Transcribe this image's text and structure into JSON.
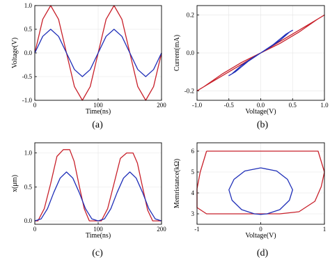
{
  "colors": {
    "red": "#c8202a",
    "blue": "#1f2fb8"
  },
  "chart_data": [
    {
      "type": "line",
      "caption": "(a)",
      "xlabel": "Time(ns)",
      "ylabel": "Voltage(V)",
      "xlim": [
        0,
        200
      ],
      "ylim": [
        -1.0,
        1.0
      ],
      "xticks": [
        "0",
        "100",
        "200"
      ],
      "yticks": [
        "1.0",
        "0.5",
        "0.0",
        "-0.5",
        "-1.0"
      ],
      "grid": true,
      "series": [
        {
          "color": "red",
          "x": [
            0,
            12.5,
            25,
            37.5,
            50,
            62.5,
            75,
            87.5,
            100,
            112.5,
            125,
            137.5,
            150,
            162.5,
            175,
            187.5,
            200
          ],
          "values": [
            0,
            0.71,
            1.0,
            0.71,
            0,
            -0.71,
            -1.0,
            -0.71,
            0,
            0.71,
            1.0,
            0.71,
            0,
            -0.71,
            -1.0,
            -0.71,
            0
          ]
        },
        {
          "color": "blue",
          "x": [
            0,
            12.5,
            25,
            37.5,
            50,
            62.5,
            75,
            87.5,
            100,
            112.5,
            125,
            137.5,
            150,
            162.5,
            175,
            187.5,
            200
          ],
          "values": [
            0,
            0.35,
            0.5,
            0.35,
            0,
            -0.35,
            -0.5,
            -0.35,
            0,
            0.35,
            0.5,
            0.35,
            0,
            -0.35,
            -0.5,
            -0.35,
            0
          ]
        }
      ]
    },
    {
      "type": "line",
      "caption": "(b)",
      "xlabel": "Voltage(V)",
      "ylabel": "Current(mA)",
      "xlim": [
        -1.0,
        1.0
      ],
      "ylim": [
        -0.25,
        0.25
      ],
      "xticks": [
        "-1.0",
        "-0.5",
        "0.0",
        "0.5",
        "1.0"
      ],
      "yticks": [
        "0.2",
        "0.0",
        "-0.2"
      ],
      "grid": true,
      "series": [
        {
          "color": "red",
          "x": [
            0,
            0.3,
            0.6,
            0.85,
            1.0,
            0.9,
            0.6,
            0.3,
            0,
            -0.3,
            -0.6,
            -0.85,
            -1.0,
            -0.9,
            -0.6,
            -0.3,
            0
          ],
          "values": [
            0,
            0.06,
            0.12,
            0.17,
            0.2,
            0.18,
            0.11,
            0.05,
            0,
            -0.06,
            -0.12,
            -0.17,
            -0.2,
            -0.18,
            -0.11,
            -0.05,
            0
          ]
        },
        {
          "color": "blue",
          "x": [
            0,
            0.2,
            0.4,
            0.5,
            0.45,
            0.3,
            0.1,
            0,
            -0.2,
            -0.4,
            -0.5,
            -0.45,
            -0.3,
            -0.1,
            0
          ],
          "values": [
            0,
            0.045,
            0.1,
            0.12,
            0.11,
            0.065,
            0.02,
            0,
            -0.045,
            -0.1,
            -0.12,
            -0.11,
            -0.065,
            -0.02,
            0
          ]
        }
      ]
    },
    {
      "type": "line",
      "caption": "(c)",
      "xlabel": "Time(ns)",
      "ylabel": "x(μm)",
      "xlim": [
        0,
        200
      ],
      "ylim": [
        -0.05,
        1.15
      ],
      "xticks": [
        "0",
        "100",
        "200"
      ],
      "yticks": [
        "1.0",
        "0.5",
        "0.0"
      ],
      "grid": true,
      "series": [
        {
          "color": "red",
          "x": [
            0,
            5,
            15,
            25,
            35,
            45,
            55,
            62,
            70,
            78,
            86,
            95,
            100,
            105,
            115,
            125,
            135,
            145,
            155,
            162,
            170,
            178,
            186,
            195,
            200
          ],
          "values": [
            0,
            0,
            0.18,
            0.55,
            0.95,
            1.05,
            1.05,
            0.88,
            0.52,
            0.18,
            0,
            0,
            0,
            0,
            0.18,
            0.55,
            0.92,
            1.0,
            1.0,
            0.85,
            0.5,
            0.16,
            0,
            0,
            0
          ]
        },
        {
          "color": "blue",
          "x": [
            0,
            10,
            20,
            30,
            40,
            50,
            60,
            70,
            80,
            90,
            100,
            110,
            120,
            130,
            140,
            150,
            160,
            170,
            180,
            190,
            200
          ],
          "values": [
            0,
            0.03,
            0.18,
            0.42,
            0.63,
            0.72,
            0.63,
            0.42,
            0.18,
            0.03,
            0,
            0.03,
            0.18,
            0.42,
            0.63,
            0.72,
            0.63,
            0.42,
            0.18,
            0.03,
            0
          ]
        }
      ]
    },
    {
      "type": "line",
      "caption": "(d)",
      "xlabel": "Voltage(V)",
      "ylabel": "Memristance(kΩ)",
      "xlim": [
        -1.0,
        1.0
      ],
      "ylim": [
        2.5,
        6.4
      ],
      "xticks": [
        "-1",
        "0",
        "1"
      ],
      "yticks": [
        "6",
        "5",
        "4",
        "3"
      ],
      "grid": true,
      "series": [
        {
          "color": "red",
          "x": [
            -0.85,
            -0.5,
            0,
            0.5,
            0.9,
            1.0,
            0.95,
            0.85,
            0.6,
            0.3,
            0,
            -0.3,
            -0.6,
            -0.85,
            -1.0,
            -1.0,
            -0.95,
            -0.85
          ],
          "values": [
            6.0,
            6.0,
            6.0,
            6.0,
            6.0,
            5.0,
            4.3,
            3.6,
            3.1,
            3.0,
            3.0,
            3.0,
            3.0,
            3.0,
            3.3,
            4.2,
            5.0,
            6.0
          ]
        },
        {
          "color": "blue",
          "x": [
            0,
            0.25,
            0.42,
            0.5,
            0.45,
            0.3,
            0.1,
            0,
            -0.1,
            -0.3,
            -0.45,
            -0.5,
            -0.42,
            -0.25,
            0
          ],
          "values": [
            5.2,
            5.05,
            4.65,
            4.15,
            3.65,
            3.2,
            3.0,
            2.97,
            3.0,
            3.2,
            3.65,
            4.15,
            4.65,
            5.05,
            5.2
          ]
        }
      ]
    }
  ]
}
